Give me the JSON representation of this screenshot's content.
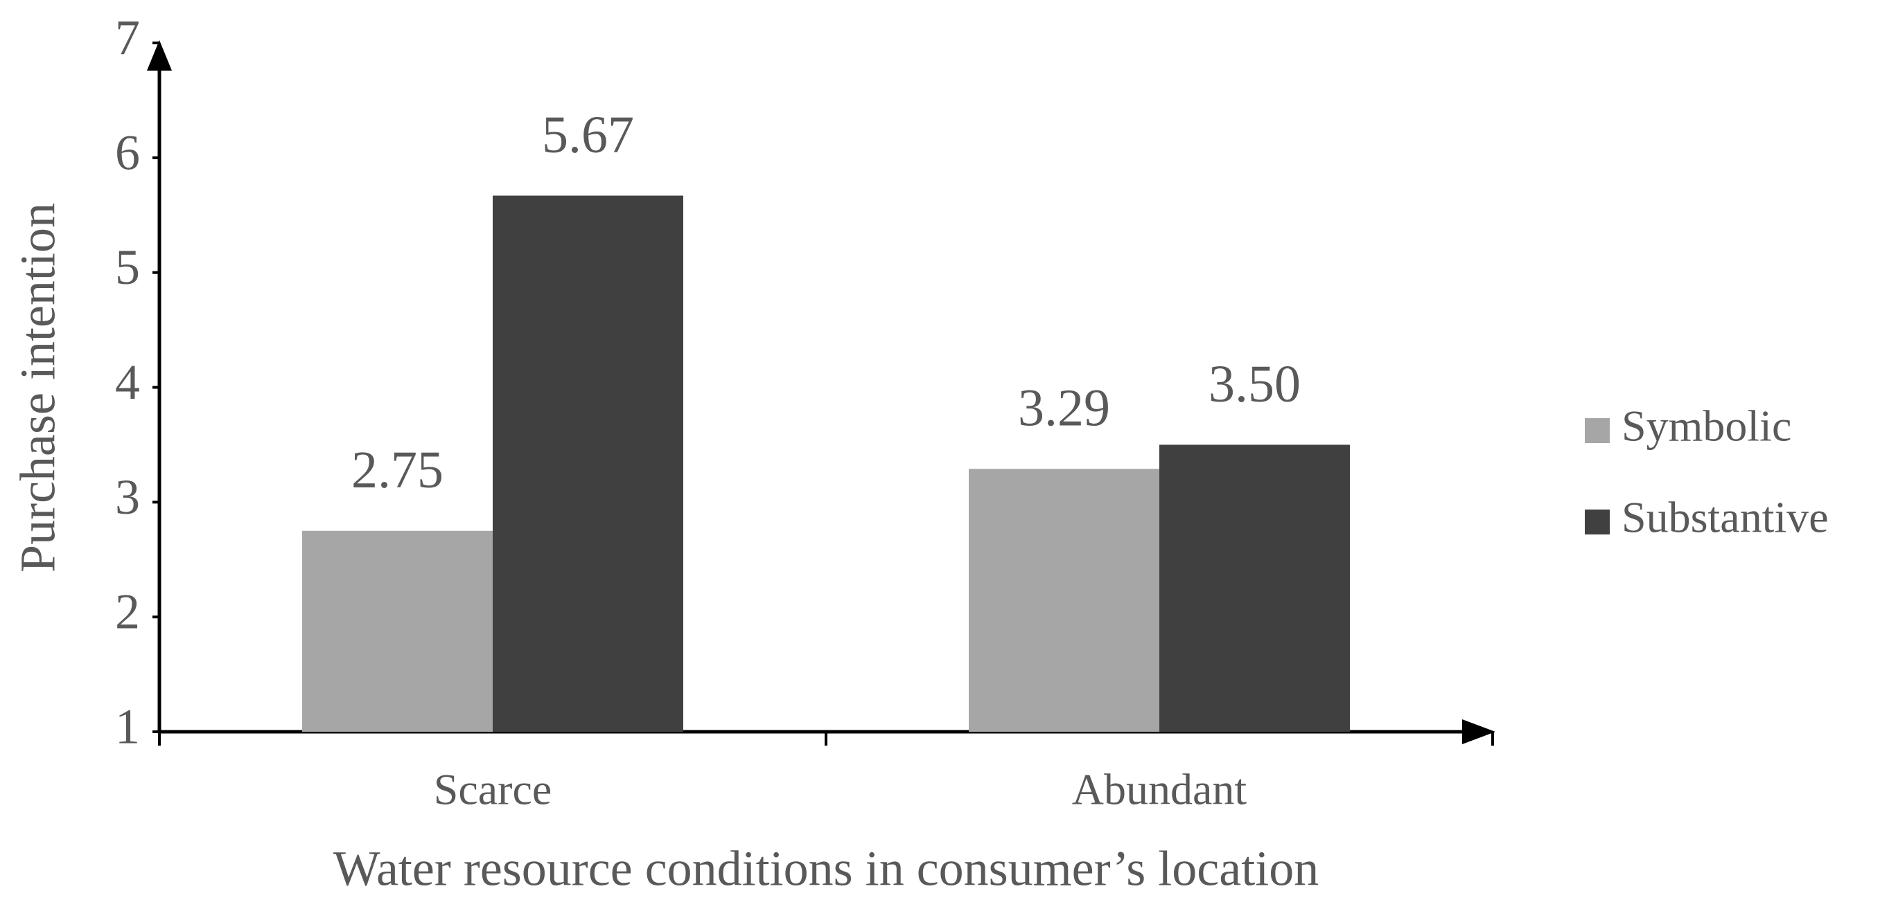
{
  "chart_data": {
    "type": "bar",
    "categories": [
      "Scarce",
      "Abundant"
    ],
    "series": [
      {
        "name": "Symbolic",
        "color": "#a6a6a6",
        "values": [
          2.75,
          3.29
        ],
        "value_labels": [
          "2.75",
          "3.29"
        ]
      },
      {
        "name": "Substantive",
        "color": "#404040",
        "values": [
          5.67,
          3.5
        ],
        "value_labels": [
          "5.67",
          "3.50"
        ]
      }
    ],
    "x_label": "Water resource conditions in consumer’s location",
    "y_label": "Purchase intention",
    "ylim": [
      1,
      7
    ],
    "yticks": [
      1,
      2,
      3,
      4,
      5,
      6,
      7
    ],
    "grid": false,
    "legend": "right"
  }
}
